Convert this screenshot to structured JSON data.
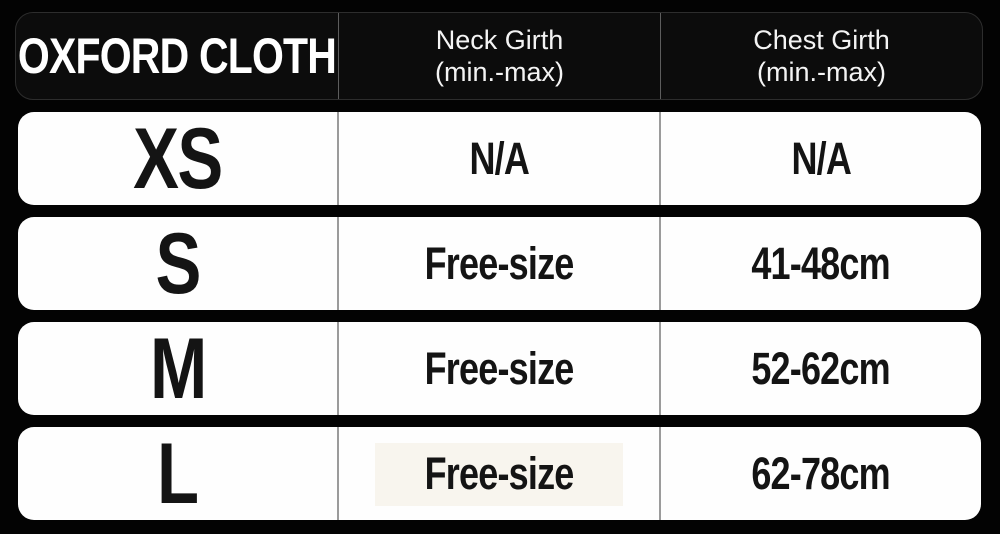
{
  "chart_data": {
    "type": "table",
    "title": "OXFORD CLOTH",
    "columns": [
      "OXFORD CLOTH",
      "Neck Girth (min.-max)",
      "Chest Girth (min.-max)"
    ],
    "rows": [
      [
        "XS",
        "N/A",
        "N/A"
      ],
      [
        "S",
        "Free-size",
        "41-48cm"
      ],
      [
        "M",
        "Free-size",
        "52-62cm"
      ],
      [
        "L",
        "Free-size",
        "62-78cm"
      ]
    ]
  },
  "header": {
    "brand": "OXFORD CLOTH",
    "neck": {
      "line1": "Neck Girth",
      "line2": "(min.-max)"
    },
    "chest": {
      "line1": "Chest Girth",
      "line2": "(min.-max)"
    }
  },
  "rows": [
    {
      "size": "XS",
      "neck": "N/A",
      "chest": "N/A"
    },
    {
      "size": "S",
      "neck": "Free-size",
      "chest": "41-48cm"
    },
    {
      "size": "M",
      "neck": "Free-size",
      "chest": "52-62cm"
    },
    {
      "size": "L",
      "neck": "Free-size",
      "chest": "62-78cm"
    }
  ],
  "colors": {
    "background": "#030303",
    "header_bg": "#0c0c0c",
    "header_border": "#2d2d2d",
    "header_divider": "#5d5d5d",
    "row_bg": "#fefefe",
    "row_divider": "#9b9b9b",
    "text_light": "#f4f4f4",
    "text_dark": "#141414",
    "cream_patch": "#f8f5ee"
  }
}
